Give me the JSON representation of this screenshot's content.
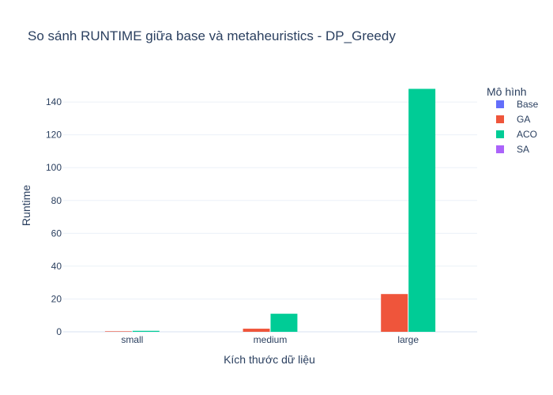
{
  "chart_data": {
    "type": "bar",
    "title": "So sánh RUNTIME giữa base và metaheuristics - DP_Greedy",
    "xlabel": "Kích thước dữ liệu",
    "ylabel": "Runtime",
    "categories": [
      "small",
      "medium",
      "large"
    ],
    "ylim": [
      0,
      154
    ],
    "yticks": [
      0,
      20,
      40,
      60,
      80,
      100,
      120,
      140
    ],
    "grid": true,
    "legend": {
      "title": "Mô hình",
      "placement": "right"
    },
    "series": [
      {
        "name": "Base",
        "color": "#636efa",
        "values": [
          0,
          0,
          0
        ]
      },
      {
        "name": "GA",
        "color": "#ef553b",
        "values": [
          0.3,
          1.9,
          23
        ]
      },
      {
        "name": "ACO",
        "color": "#00cc96",
        "values": [
          0.6,
          11,
          148
        ]
      },
      {
        "name": "SA",
        "color": "#ab63fa",
        "values": [
          0,
          0,
          0
        ]
      }
    ]
  }
}
